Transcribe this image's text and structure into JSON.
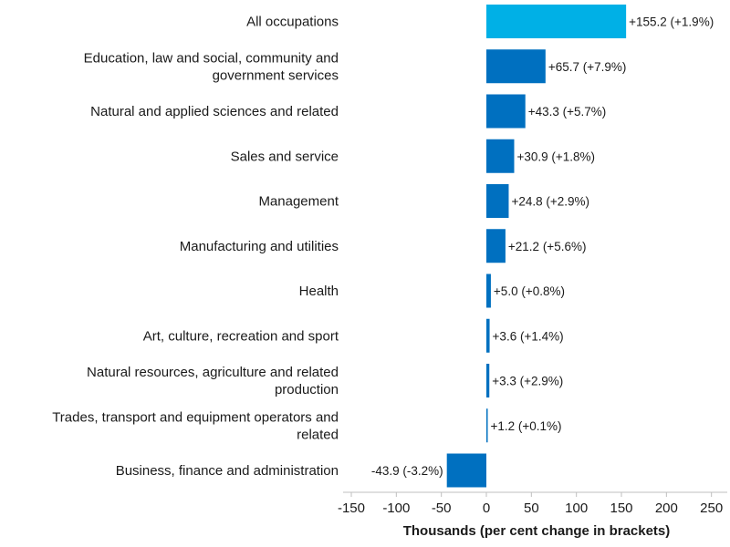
{
  "chart_data": {
    "type": "bar",
    "orientation": "horizontal",
    "categories": [
      "All occupations",
      "Education, law and social, community and\ngovernment services",
      "Natural and applied sciences and related",
      "Sales and service",
      "Management",
      "Manufacturing and utilities",
      "Health",
      "Art, culture, recreation and sport",
      "Natural resources, agriculture and related\nproduction",
      "Trades, transport and equipment operators and\nrelated",
      "Business, finance and administration"
    ],
    "values": [
      155.2,
      65.7,
      43.3,
      30.9,
      24.8,
      21.2,
      5.0,
      3.6,
      3.3,
      1.2,
      -43.9
    ],
    "data_labels": [
      "+155.2 (+1.9%)",
      "+65.7 (+7.9%)",
      "+43.3 (+5.7%)",
      "+30.9 (+1.8%)",
      "+24.8 (+2.9%)",
      "+21.2 (+5.6%)",
      "+5.0 (+0.8%)",
      "+3.6 (+1.4%)",
      "+3.3 (+2.9%)",
      "+1.2 (+0.1%)",
      "-43.9 (-3.2%)"
    ],
    "highlight_color": "#00b0e6",
    "bar_color": "#0070c0",
    "xlim": [
      -160,
      260
    ],
    "xticks": [
      -150,
      -100,
      -50,
      0,
      50,
      100,
      150,
      200,
      250
    ],
    "xlabel": "Thousands (per cent change in brackets)",
    "ylabel": "",
    "grid": false
  }
}
